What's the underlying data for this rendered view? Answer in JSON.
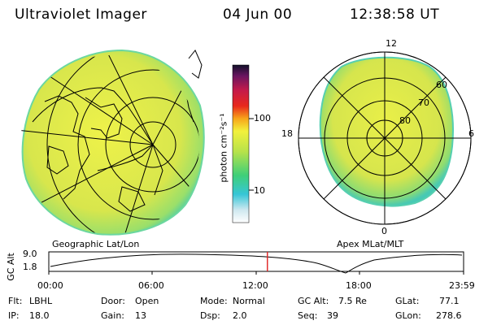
{
  "header": {
    "title": "Ultraviolet Imager",
    "date": "04 Jun 00",
    "time": "12:38:58 UT"
  },
  "maps": {
    "left_label": "Geographic Lat/Lon",
    "right_label": "Apex MLat/MLT"
  },
  "colorbar": {
    "unit_label": "photon cm⁻²s⁻¹",
    "ticks": [
      "100",
      "10"
    ]
  },
  "polar_labels": {
    "top": "12",
    "bottom": "0",
    "left": "18",
    "right": "6",
    "r60": "60",
    "r70": "70",
    "r80": "80"
  },
  "altitude_panel": {
    "ylabel": "GC Alt",
    "y_ticks": [
      "9.0",
      "1.8"
    ],
    "time_ticks": [
      "00:00",
      "06:00",
      "12:00",
      "18:00",
      "23:59"
    ],
    "current_time_fraction": 0.527
  },
  "info": {
    "flt_label": "Flt:",
    "flt_value": "LBHL",
    "door_label": "Door:",
    "door_value": "Open",
    "mode_label": "Mode:",
    "mode_value": "Normal",
    "gcalt_label": "GC Alt:",
    "gcalt_value": "7.5 Re",
    "glat_label": "GLat:",
    "glat_value": "77.1",
    "ip_label": "IP:",
    "ip_value": "18.0",
    "gain_label": "Gain:",
    "gain_value": "13",
    "dsp_label": "Dsp:",
    "dsp_value": "2.0",
    "seq_label": "Seq:",
    "seq_value": "39",
    "glon_label": "GLon:",
    "glon_value": "278.6"
  },
  "colors": {
    "image_fill": "#dde84a",
    "image_edge": "#5fd08a",
    "marker": "#e02020"
  }
}
